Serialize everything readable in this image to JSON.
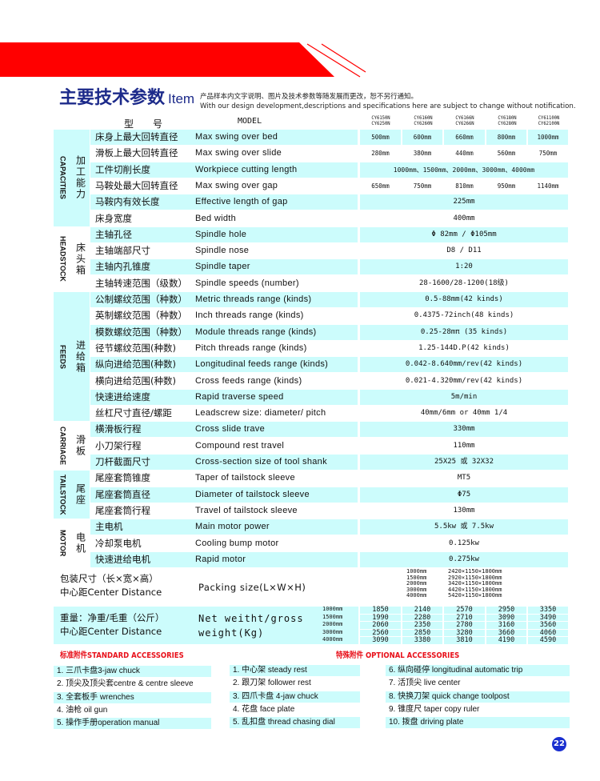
{
  "colors": {
    "accent_red": "#ff0000",
    "row_shade": "#ccfcfc",
    "title_blue": "#1c2a8a",
    "page_badge": "#1a2fd0"
  },
  "title": {
    "zh": "主要技术参数",
    "en": "Item"
  },
  "notice": {
    "zh": "产品样本内文字说明、图片及技术参数等随发展而更改，恕不另行通知。",
    "en": "With our design development,descriptions and specifications here are subject to change without notification."
  },
  "header": {
    "zh": "型　　号",
    "en": "MODEL",
    "models": [
      [
        "CY6150N",
        "CY6250N"
      ],
      [
        "CY6160N",
        "CY6260N"
      ],
      [
        "CY6166N",
        "CY6266N"
      ],
      [
        "CY6180N",
        "CY6280N"
      ],
      [
        "CY61100N",
        "CY62100N"
      ]
    ]
  },
  "sections": [
    {
      "en": "CAPACITIES",
      "zh": "加工能力",
      "shaded": true,
      "rows": [
        {
          "zh": "床身上最大回转直径",
          "en": "Max swing over bed",
          "values": [
            "500mm",
            "600mm",
            "660mm",
            "800mm",
            "1000mm"
          ]
        },
        {
          "zh": "滑板上最大回转直径",
          "en": "Max swing over slide",
          "values": [
            "280mm",
            "380mm",
            "440mm",
            "560mm",
            "750mm"
          ]
        },
        {
          "zh": "工件切削长度",
          "en": "Workpiece cutting length",
          "values": [
            "1000mm、1500mm、2000mm、3000mm、4000mm"
          ]
        },
        {
          "zh": "马鞍处最大回转直径",
          "en": "Max swing over gap",
          "values": [
            "650mm",
            "750mm",
            "810mm",
            "950mm",
            "1140mm"
          ]
        },
        {
          "zh": "马鞍内有效长度",
          "en": "Effective  length of gap",
          "values": [
            "225mm"
          ]
        },
        {
          "zh": "床身宽度",
          "en": "Bed width",
          "values": [
            "400mm"
          ]
        }
      ]
    },
    {
      "en": "HEADSTOCK",
      "zh": "床头箱",
      "shaded": false,
      "rows": [
        {
          "zh": "主轴孔径",
          "en": "Spindle hole",
          "values": [
            "Φ 82mm / Φ105mm"
          ]
        },
        {
          "zh": "主轴端部尺寸",
          "en": "Spindle nose",
          "values": [
            "D8  /  D11"
          ]
        },
        {
          "zh": "主轴内孔锥度",
          "en": "Spindle taper",
          "values": [
            "1:20"
          ]
        },
        {
          "zh": "主轴转速范围（级数）",
          "en": "Spindle speeds (number)",
          "values": [
            "28-1600/28-1200(18级)"
          ]
        }
      ]
    },
    {
      "en": "FEEDS",
      "zh": "进给箱",
      "shaded": true,
      "rows": [
        {
          "zh": "公制螺纹范围（种数）",
          "en": "Metric threads range (kinds)",
          "values": [
            "0.5-88mm(42 kinds)"
          ]
        },
        {
          "zh": "英制螺纹范围（种数）",
          "en": "Inch threads range (kinds)",
          "values": [
            "0.4375-72inch(48 kinds)"
          ]
        },
        {
          "zh": "模数螺纹范围（种数）",
          "en": "Module threads range (kinds)",
          "values": [
            "0.25-28mπ (35 kinds)"
          ]
        },
        {
          "zh": "径节螺纹范围(种数)",
          "en": "Pitch threads range (kinds)",
          "values": [
            "1.25-144D.P(42 kinds)"
          ]
        },
        {
          "zh": "纵向进给范围(种数)",
          "en": "Longitudinal feeds range (kinds)",
          "values": [
            "0.042-8.640mm/rev(42 kinds)"
          ]
        },
        {
          "zh": "横向进给范围(种数)",
          "en": "Cross feeds range (kinds)",
          "values": [
            "0.021-4.320mm/rev(42 kinds)"
          ]
        },
        {
          "zh": "快速进给速度",
          "en": "Rapid traverse speed",
          "values": [
            "5m/min"
          ]
        },
        {
          "zh": "丝杠尺寸直径/螺距",
          "en": "Leadscrew size: diameter/ pitch",
          "values": [
            "40mm/6mm or 40mm 1/4"
          ]
        }
      ]
    },
    {
      "en": "CARRIAGE",
      "zh": "滑板",
      "shaded": false,
      "rows": [
        {
          "zh": "横滑板行程",
          "en": "Cross slide trave",
          "values": [
            "330mm"
          ]
        },
        {
          "zh": "小刀架行程",
          "en": "Compound rest travel",
          "values": [
            "110mm"
          ]
        },
        {
          "zh": "刀杆截面尺寸",
          "en": "Cross-section size of tool shank",
          "values": [
            "25X25 或 32X32"
          ]
        }
      ]
    },
    {
      "en": "TAILSTOCK",
      "zh": "尾座",
      "shaded": true,
      "rows": [
        {
          "zh": "尾座套筒锥度",
          "en": "Taper of tailstock sleeve",
          "values": [
            "MT5"
          ]
        },
        {
          "zh": "尾座套筒直径",
          "en": "Diameter of tailstock sleeve",
          "values": [
            "Φ75"
          ]
        },
        {
          "zh": "尾座套筒行程",
          "en": "Travel of tailstock sleeve",
          "values": [
            "130mm"
          ]
        }
      ]
    },
    {
      "en": "MOTOR",
      "zh": "电机",
      "shaded": false,
      "rows": [
        {
          "zh": "主电机",
          "en": "Main motor power",
          "values": [
            "5.5kw 或 7.5kw"
          ]
        },
        {
          "zh": "冷却泵电机",
          "en": "Cooling bump motor",
          "values": [
            "0.125kw"
          ]
        },
        {
          "zh": "快速进给电机",
          "en": "Rapid motor",
          "values": [
            "0.275kw"
          ]
        }
      ]
    }
  ],
  "packing": {
    "zh": "包装尺寸（长×宽×高）",
    "zh2": "中心距Center Distance",
    "en": "Packing size(L×W×H)",
    "lengths": [
      "1000mm",
      "1500mm",
      "2000mm",
      "3000mm",
      "4000mm"
    ],
    "sizes": [
      "2420×1150×1800mm",
      "2920×1150×1800mm",
      "3420×1150×1800mm",
      "4420×1150×1800mm",
      "5420×1150×1800mm"
    ]
  },
  "weight": {
    "zh": "重量：净重/毛重（公斤）",
    "zh2": "中心距Center Distance",
    "en1": "Net weitht/gross",
    "en2": "weight(Kg)",
    "lengths": [
      "1000mm",
      "1500mm",
      "2000mm",
      "3000mm",
      "4000mm"
    ],
    "values": [
      [
        "1850",
        "2140",
        "2570",
        "2950",
        "3350"
      ],
      [
        "1990",
        "2280",
        "2710",
        "3090",
        "3490"
      ],
      [
        "2060",
        "2350",
        "2780",
        "3160",
        "3560"
      ],
      [
        "2560",
        "2850",
        "3280",
        "3660",
        "4060"
      ],
      [
        "3090",
        "3380",
        "3810",
        "4190",
        "4590"
      ]
    ]
  },
  "standard_accessories": {
    "title": "标准附件STANDARD ACCESSORIES",
    "items": [
      "1. 三爪卡盘3-jaw chuck",
      "2. 顶尖及顶尖套centre & centre sleeve",
      "3. 全套板手   wrenches",
      "4. 油枪  oil gun",
      "5. 操作手册operation manual"
    ]
  },
  "optional_accessories": {
    "title": "特殊附件 OPTIONAL  ACCESSORIES",
    "items": [
      "1. 中心架  steady rest",
      "2. 跟刀架  follower rest",
      "3. 四爪卡盘  4-jaw chuck",
      "4. 花盘  face plate",
      "5. 乱扣盘  thread chasing dial",
      "6. 纵向碰停 longitudinal automatic trip",
      "7. 活顶尖  live center",
      "8. 快换刀架  quick change toolpost",
      "9. 锥度尺  taper copy ruler",
      "10. 拨盘    driving plate"
    ]
  },
  "page_number": "22"
}
